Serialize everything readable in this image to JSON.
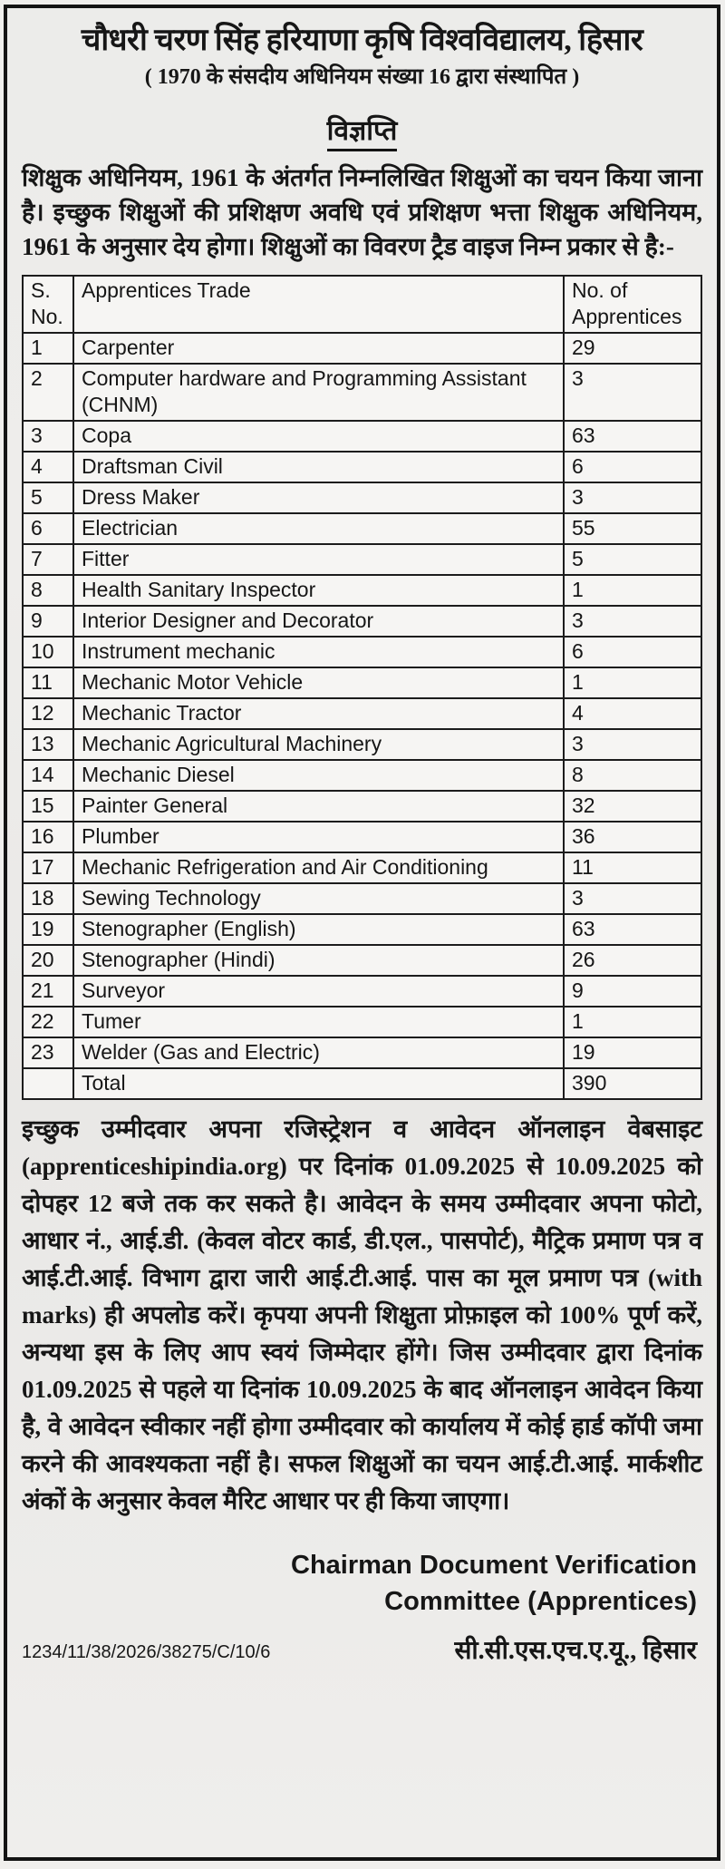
{
  "header": {
    "university_name": "चौधरी चरण सिंह हरियाणा कृषि विश्वविद्यालय, हिसार",
    "established": "( 1970 के संसदीय अधिनियम संख्या 16 द्वारा संस्थापित )"
  },
  "notice": {
    "title": "विज्ञप्ति",
    "intro": "शिक्षुक अधिनियम, 1961 के अंतर्गत निम्नलिखित शिक्षुओं का चयन किया जाना है। इच्छुक शिक्षुओं की प्रशिक्षण अवधि एवं प्रशिक्षण भत्ता शिक्षुक अधिनियम, 1961 के अनुसार देय होगा। शिक्षुओं का विवरण ट्रैड वाइज निम्न प्रकार से है:-"
  },
  "table": {
    "headers": {
      "sno": "S. No.",
      "trade": "Apprentices Trade",
      "count": "No. of Apprentices"
    },
    "rows": [
      {
        "sno": "1",
        "trade": "Carpenter",
        "count": "29"
      },
      {
        "sno": "2",
        "trade": "Computer hardware and Programming Assistant (CHNM)",
        "count": "3"
      },
      {
        "sno": "3",
        "trade": "Copa",
        "count": "63"
      },
      {
        "sno": "4",
        "trade": "Draftsman Civil",
        "count": "6"
      },
      {
        "sno": "5",
        "trade": "Dress Maker",
        "count": "3"
      },
      {
        "sno": "6",
        "trade": "Electrician",
        "count": "55"
      },
      {
        "sno": "7",
        "trade": "Fitter",
        "count": "5"
      },
      {
        "sno": "8",
        "trade": "Health Sanitary Inspector",
        "count": "1"
      },
      {
        "sno": "9",
        "trade": "Interior Designer and Decorator",
        "count": "3"
      },
      {
        "sno": "10",
        "trade": "Instrument mechanic",
        "count": "6"
      },
      {
        "sno": "11",
        "trade": "Mechanic Motor Vehicle",
        "count": "1"
      },
      {
        "sno": "12",
        "trade": "Mechanic Tractor",
        "count": "4"
      },
      {
        "sno": "13",
        "trade": "Mechanic Agricultural Machinery",
        "count": "3"
      },
      {
        "sno": "14",
        "trade": "Mechanic Diesel",
        "count": "8"
      },
      {
        "sno": "15",
        "trade": "Painter General",
        "count": "32"
      },
      {
        "sno": "16",
        "trade": "Plumber",
        "count": "36"
      },
      {
        "sno": "17",
        "trade": "Mechanic Refrigeration and Air Conditioning",
        "count": "11"
      },
      {
        "sno": "18",
        "trade": "Sewing Technology",
        "count": "3"
      },
      {
        "sno": "19",
        "trade": "Stenographer (English)",
        "count": "63"
      },
      {
        "sno": "20",
        "trade": "Stenographer (Hindi)",
        "count": "26"
      },
      {
        "sno": "21",
        "trade": "Surveyor",
        "count": "9"
      },
      {
        "sno": "22",
        "trade": "Tumer",
        "count": "1"
      },
      {
        "sno": "23",
        "trade": "Welder (Gas and Electric)",
        "count": "19"
      }
    ],
    "total": {
      "label": "Total",
      "value": "390"
    }
  },
  "details": "इच्छुक उम्मीदवार अपना रजिस्ट्रेशन व आवेदन ऑनलाइन वेबसाइट (apprenticeshipindia.org) पर दिनांक 01.09.2025 से 10.09.2025 को दोपहर 12 बजे तक कर सकते है। आवेदन के समय उम्मीदवार अपना फोटो, आधार नं., आई.डी. (केवल वोटर कार्ड, डी.एल., पासपोर्ट), मैट्रिक प्रमाण पत्र व आई.टी.आई. विभाग द्वारा जारी आई.टी.आई. पास का मूल प्रमाण पत्र (with marks) ही अपलोड करें। कृपया अपनी शिक्षुता प्रोफ़ाइल को 100% पूर्ण करें, अन्यथा इस के लिए आप स्वयं जिम्मेदार होंगे। जिस उम्मीदवार द्वारा दिनांक 01.09.2025 से पहले या दिनांक 10.09.2025 के बाद ऑनलाइन आवेदन किया है, वे आवेदन स्वीकार नहीं होगा उम्मीदवार को कार्यालय में कोई हार्ड कॉपी जमा करने की आवश्यकता नहीं है। सफल शिक्षुओं का चयन आई.टी.आई. मार्कशीट अंकों के अनुसार केवल मैरिट आधार पर ही किया जाएगा।",
  "signature": {
    "line1": "Chairman Document Verification",
    "line2": "Committee (Apprentices)",
    "organization": "सी.सी.एस.एच.ए.यू., हिसार"
  },
  "footer": {
    "reference_number": "1234/11/38/2026/38275/C/10/6"
  },
  "colors": {
    "ink": "#161616",
    "page_background": "#eeedeb",
    "table_background": "#f6f5f3",
    "border": "#141414"
  }
}
